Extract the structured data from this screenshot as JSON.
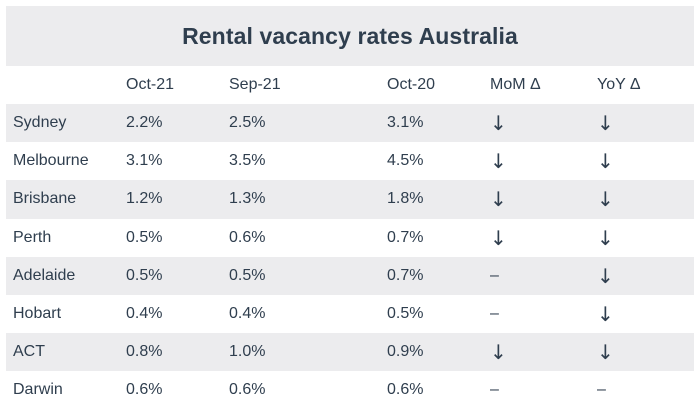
{
  "title": "Rental vacancy rates Australia",
  "table": {
    "headers": [
      "",
      "Oct-21",
      "Sep-21",
      "Oct-20",
      "MoM Δ",
      "YoY Δ"
    ],
    "rows": [
      {
        "city": "Sydney",
        "oct21": "2.2%",
        "sep21": "2.5%",
        "oct20": "3.1%",
        "mom": "↓",
        "yoy": "↓"
      },
      {
        "city": "Melbourne",
        "oct21": "3.1%",
        "sep21": "3.5%",
        "oct20": "4.5%",
        "mom": "↓",
        "yoy": "↓"
      },
      {
        "city": "Brisbane",
        "oct21": "1.2%",
        "sep21": "1.3%",
        "oct20": "1.8%",
        "mom": "↓",
        "yoy": "↓"
      },
      {
        "city": "Perth",
        "oct21": "0.5%",
        "sep21": "0.6%",
        "oct20": "0.7%",
        "mom": "↓",
        "yoy": "↓"
      },
      {
        "city": "Adelaide",
        "oct21": "0.5%",
        "sep21": "0.5%",
        "oct20": "0.7%",
        "mom": "–",
        "yoy": "↓"
      },
      {
        "city": "Hobart",
        "oct21": "0.4%",
        "sep21": "0.4%",
        "oct20": "0.5%",
        "mom": "–",
        "yoy": "↓"
      },
      {
        "city": "ACT",
        "oct21": "0.8%",
        "sep21": "1.0%",
        "oct20": "0.9%",
        "mom": "↓",
        "yoy": "↓"
      },
      {
        "city": "Darwin",
        "oct21": "0.6%",
        "sep21": "0.6%",
        "oct20": "0.6%",
        "mom": "–",
        "yoy": "–"
      }
    ]
  }
}
